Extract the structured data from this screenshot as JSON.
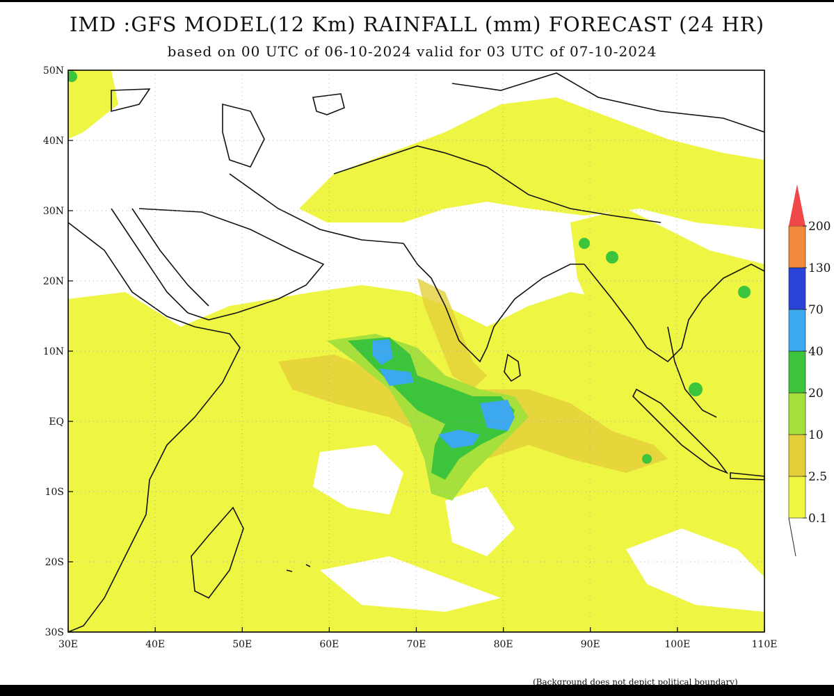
{
  "header": {
    "title": "IMD :GFS MODEL(12 Km) RAINFALL (mm) FORECAST (24 HR)",
    "subtitle": "based on 00 UTC of 06-10-2024 valid for 03 UTC of 07-10-2024"
  },
  "map": {
    "lon_range": [
      30,
      110
    ],
    "lat_range": [
      -30,
      50
    ],
    "lon_ticks": [
      "30E",
      "40E",
      "50E",
      "60E",
      "70E",
      "80E",
      "90E",
      "100E",
      "110E"
    ],
    "lat_ticks": [
      "50N",
      "40N",
      "30N",
      "20N",
      "10N",
      "EQ",
      "10S",
      "20S",
      "30S"
    ],
    "grid": "dotted",
    "land_outline_color": "#111111",
    "footnote": "(Background does not depict political boundary)"
  },
  "legend": {
    "units": "mm",
    "placement": "right",
    "levels": [
      "0.1",
      "2.5",
      "10",
      "20",
      "40",
      "70",
      "130",
      "200"
    ],
    "colors": [
      "#f0f542",
      "#e4cf3a",
      "#a6e03c",
      "#3cc43c",
      "#3ca8f0",
      "#2a42d8",
      "#f0893a",
      "#f04848"
    ]
  }
}
